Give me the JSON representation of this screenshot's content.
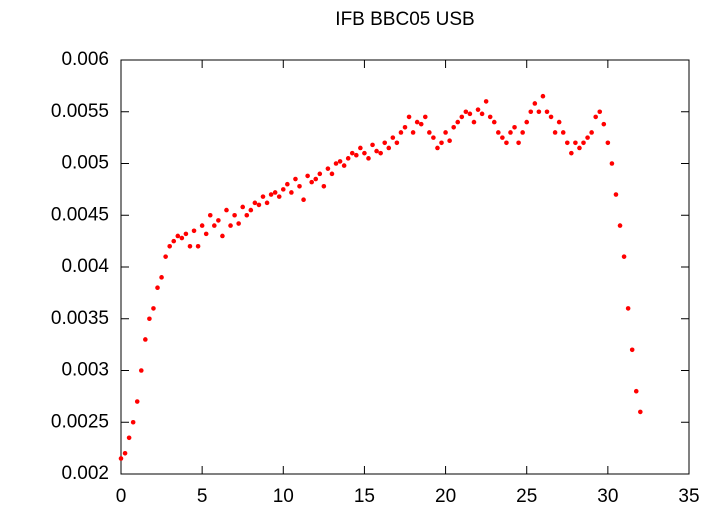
{
  "chart_data": {
    "type": "scatter",
    "title": "IFB BBC05 USB",
    "series": [
      {
        "color": "#ff0000",
        "x": [
          0,
          0.25,
          0.5,
          0.75,
          1,
          1.25,
          1.5,
          1.75,
          2,
          2.25,
          2.5,
          2.75,
          3,
          3.25,
          3.5,
          3.75,
          4,
          4.25,
          4.5,
          4.75,
          5,
          5.25,
          5.5,
          5.75,
          6,
          6.25,
          6.5,
          6.75,
          7,
          7.25,
          7.5,
          7.75,
          8,
          8.25,
          8.5,
          8.75,
          9,
          9.25,
          9.5,
          9.75,
          10,
          10.25,
          10.5,
          10.75,
          11,
          11.25,
          11.5,
          11.75,
          12,
          12.25,
          12.5,
          12.75,
          13,
          13.25,
          13.5,
          13.75,
          14,
          14.25,
          14.5,
          14.75,
          15,
          15.25,
          15.5,
          15.75,
          16,
          16.25,
          16.5,
          16.75,
          17,
          17.25,
          17.5,
          17.75,
          18,
          18.25,
          18.5,
          18.75,
          19,
          19.25,
          19.5,
          19.75,
          20,
          20.25,
          20.5,
          20.75,
          21,
          21.25,
          21.5,
          21.75,
          22,
          22.25,
          22.5,
          22.75,
          23,
          23.25,
          23.5,
          23.75,
          24,
          24.25,
          24.5,
          24.75,
          25,
          25.25,
          25.5,
          25.75,
          26,
          26.25,
          26.5,
          26.75,
          27,
          27.25,
          27.5,
          27.75,
          28,
          28.25,
          28.5,
          28.75,
          29,
          29.25,
          29.5,
          29.75,
          30,
          30.25,
          30.5,
          30.75,
          31,
          31.25,
          31.5,
          31.75,
          32
        ],
        "values": [
          0.00215,
          0.0022,
          0.00235,
          0.0025,
          0.0027,
          0.003,
          0.0033,
          0.0035,
          0.0036,
          0.0038,
          0.0039,
          0.0041,
          0.0042,
          0.00425,
          0.0043,
          0.00428,
          0.00432,
          0.0042,
          0.00435,
          0.0042,
          0.0044,
          0.00432,
          0.0045,
          0.0044,
          0.00445,
          0.0043,
          0.00455,
          0.0044,
          0.0045,
          0.00442,
          0.00458,
          0.0045,
          0.00455,
          0.00462,
          0.0046,
          0.00468,
          0.00462,
          0.0047,
          0.00472,
          0.00468,
          0.00475,
          0.0048,
          0.00472,
          0.00485,
          0.00478,
          0.00465,
          0.00488,
          0.00482,
          0.00485,
          0.0049,
          0.00478,
          0.00495,
          0.0049,
          0.005,
          0.00502,
          0.00498,
          0.00505,
          0.0051,
          0.00508,
          0.00515,
          0.0051,
          0.00505,
          0.00518,
          0.00512,
          0.0051,
          0.0052,
          0.00515,
          0.00525,
          0.0052,
          0.0053,
          0.00535,
          0.00545,
          0.0053,
          0.0054,
          0.00538,
          0.00545,
          0.0053,
          0.00525,
          0.00515,
          0.0052,
          0.0053,
          0.00522,
          0.00535,
          0.0054,
          0.00545,
          0.0055,
          0.00548,
          0.0054,
          0.00552,
          0.00548,
          0.0056,
          0.00545,
          0.0054,
          0.0053,
          0.00525,
          0.0052,
          0.0053,
          0.00535,
          0.0052,
          0.0053,
          0.0054,
          0.0055,
          0.00558,
          0.0055,
          0.00565,
          0.0055,
          0.00545,
          0.0053,
          0.0054,
          0.0053,
          0.0052,
          0.0051,
          0.0052,
          0.00515,
          0.0052,
          0.00525,
          0.0053,
          0.00545,
          0.0055,
          0.00538,
          0.0052,
          0.005,
          0.0047,
          0.0044,
          0.0041,
          0.0036,
          0.0032,
          0.0028,
          0.0026
        ]
      }
    ],
    "xlim": [
      0,
      35
    ],
    "xticks": [
      0,
      5,
      10,
      15,
      20,
      25,
      30,
      35
    ],
    "ylim": [
      0.002,
      0.006
    ],
    "yticks": [
      0.002,
      0.0025,
      0.003,
      0.0035,
      0.004,
      0.0045,
      0.005,
      0.0055,
      0.006
    ]
  }
}
